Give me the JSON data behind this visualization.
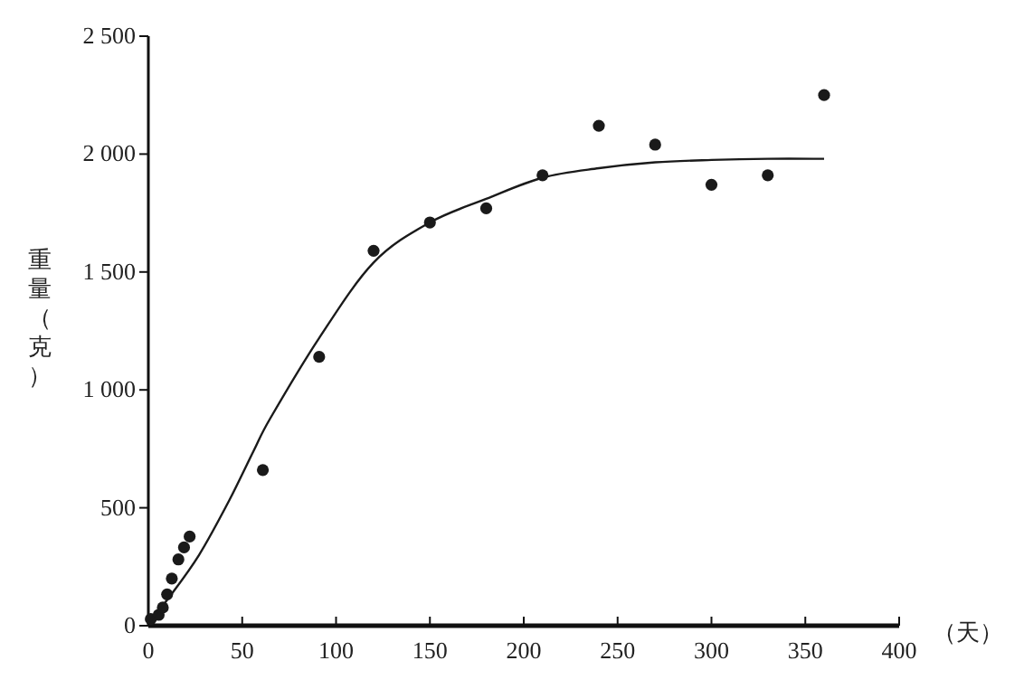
{
  "chart_data": {
    "type": "scatter",
    "xlabel": "（天）",
    "ylabel": "重量（克）",
    "xlim": [
      0,
      400
    ],
    "xticks": [
      0,
      50,
      100,
      150,
      200,
      250,
      300,
      350,
      400
    ],
    "ylim": [
      0,
      2500
    ],
    "yticks": [
      0,
      500,
      {
        "value": 1000,
        "label": "1 000"
      },
      {
        "value": 1500,
        "label": "1 500"
      },
      {
        "value": 2000,
        "label": "2 000"
      },
      {
        "value": 2500,
        "label": "2 500"
      }
    ],
    "marker": "circle",
    "series": [
      {
        "type": "scatter",
        "color": "#1a1a1a",
        "x": [
          1.3,
          5.5,
          7.7,
          10,
          12.5,
          16,
          19,
          22,
          61,
          91,
          120,
          150,
          180,
          210,
          240,
          270,
          300,
          330,
          360
        ],
        "values": [
          28,
          46,
          77,
          133,
          200,
          281,
          332,
          378,
          660,
          1140,
          1590,
          1710,
          1770,
          1910,
          2120,
          2040,
          1870,
          1910,
          2250
        ]
      },
      {
        "type": "line",
        "color": "#1a1a1a",
        "marker": "none",
        "line_style": "solid",
        "x": [
          0,
          11,
          27,
          43,
          56,
          65,
          91,
          120,
          150,
          180,
          210,
          240,
          270,
          300,
          330,
          360
        ],
        "values": [
          10,
          120,
          300,
          530,
          740,
          880,
          1220,
          1540,
          1710,
          1810,
          1900,
          1940,
          1965,
          1975,
          1980,
          1980
        ]
      }
    ]
  }
}
